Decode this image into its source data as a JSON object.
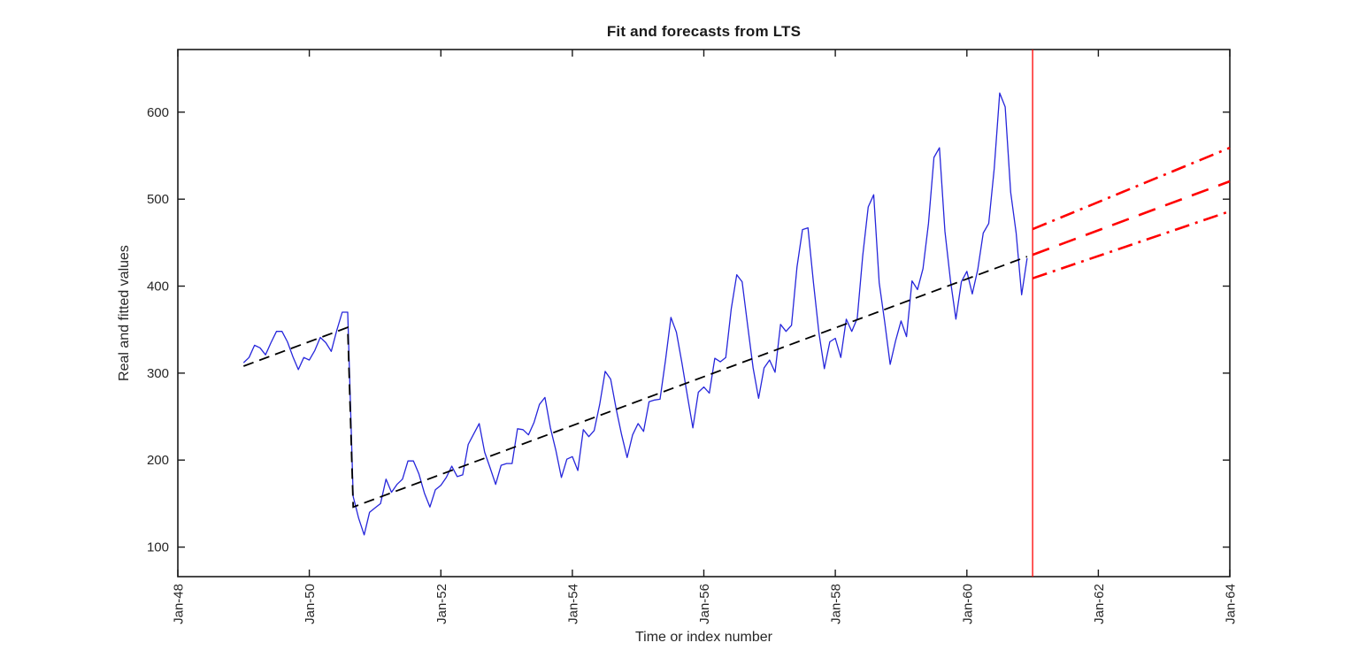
{
  "chart_data": {
    "type": "line",
    "title": "Fit and forecasts from LTS",
    "xlabel": "Time or index number",
    "ylabel": "Real and fitted values",
    "x_unit": "months since Jan-1948",
    "xlim_months": [
      0,
      192
    ],
    "ylim": [
      66,
      672
    ],
    "grid": false,
    "legend": "none",
    "x_ticks": [
      {
        "month": 0,
        "label": "Jan-48"
      },
      {
        "month": 24,
        "label": "Jan-50"
      },
      {
        "month": 48,
        "label": "Jan-52"
      },
      {
        "month": 72,
        "label": "Jan-54"
      },
      {
        "month": 96,
        "label": "Jan-56"
      },
      {
        "month": 120,
        "label": "Jan-58"
      },
      {
        "month": 144,
        "label": "Jan-60"
      },
      {
        "month": 168,
        "label": "Jan-62"
      },
      {
        "month": 192,
        "label": "Jan-64"
      }
    ],
    "y_ticks": [
      100,
      200,
      300,
      400,
      500,
      600
    ],
    "colors": {
      "observed": "#2626DB",
      "fit": "#000000",
      "forecast": "#FF0000",
      "axis": "#1A1A1A",
      "text": "#262626"
    },
    "observed": {
      "name": "real-values",
      "start_month": 12,
      "start_label": "Jan-49",
      "end_label": "Dec-60",
      "values": [
        312,
        318,
        332,
        329,
        321,
        335,
        348,
        348,
        336,
        319,
        304,
        318,
        315,
        326,
        341,
        335,
        325,
        349,
        370,
        370,
        158,
        133,
        114,
        140,
        145,
        150,
        178,
        163,
        172,
        178,
        199,
        199,
        184,
        162,
        146,
        166,
        171,
        180,
        193,
        181,
        183,
        218,
        230,
        242,
        209,
        191,
        172,
        194,
        196,
        196,
        236,
        235,
        229,
        243,
        264,
        272,
        237,
        211,
        180,
        201,
        204,
        188,
        235,
        227,
        234,
        264,
        302,
        293,
        259,
        229,
        203,
        229,
        242,
        233,
        267,
        269,
        270,
        315,
        364,
        347,
        312,
        274,
        237,
        278,
        284,
        277,
        317,
        313,
        318,
        374,
        413,
        405,
        355,
        306,
        271,
        306,
        315,
        301,
        356,
        348,
        355,
        422,
        465,
        467,
        404,
        347,
        305,
        336,
        340,
        318,
        362,
        348,
        363,
        435,
        491,
        505,
        404,
        359,
        310,
        337,
        360,
        342,
        406,
        396,
        420,
        472,
        548,
        559,
        463,
        407,
        362,
        405,
        417,
        391,
        419,
        461,
        472,
        535,
        622,
        606,
        508,
        461,
        390,
        432
      ]
    },
    "fit": {
      "name": "lts-fit",
      "style": "dashed",
      "dash": [
        12,
        7
      ],
      "width": 1.8,
      "points": [
        [
          12,
          308
        ],
        [
          31,
          352.5
        ],
        [
          32,
          146
        ],
        [
          155,
          434
        ]
      ]
    },
    "forecast_start": {
      "name": "forecast-start",
      "month": 156,
      "label_equivalent": "Jan-61",
      "width": 1.3
    },
    "forecasts": [
      {
        "name": "forecast-upper",
        "style": "dash-dot",
        "dash": [
          17,
          7,
          3,
          7
        ],
        "width": 2.6,
        "points": [
          [
            156,
            465.5
          ],
          [
            192,
            559
          ]
        ]
      },
      {
        "name": "forecast-center",
        "style": "dashed",
        "dash": [
          20,
          12
        ],
        "width": 2.6,
        "points": [
          [
            156,
            436
          ],
          [
            192,
            520.5
          ]
        ]
      },
      {
        "name": "forecast-lower",
        "style": "dash-dot",
        "dash": [
          17,
          7,
          3,
          7
        ],
        "width": 2.6,
        "points": [
          [
            156,
            409
          ],
          [
            192,
            486
          ]
        ]
      }
    ]
  }
}
